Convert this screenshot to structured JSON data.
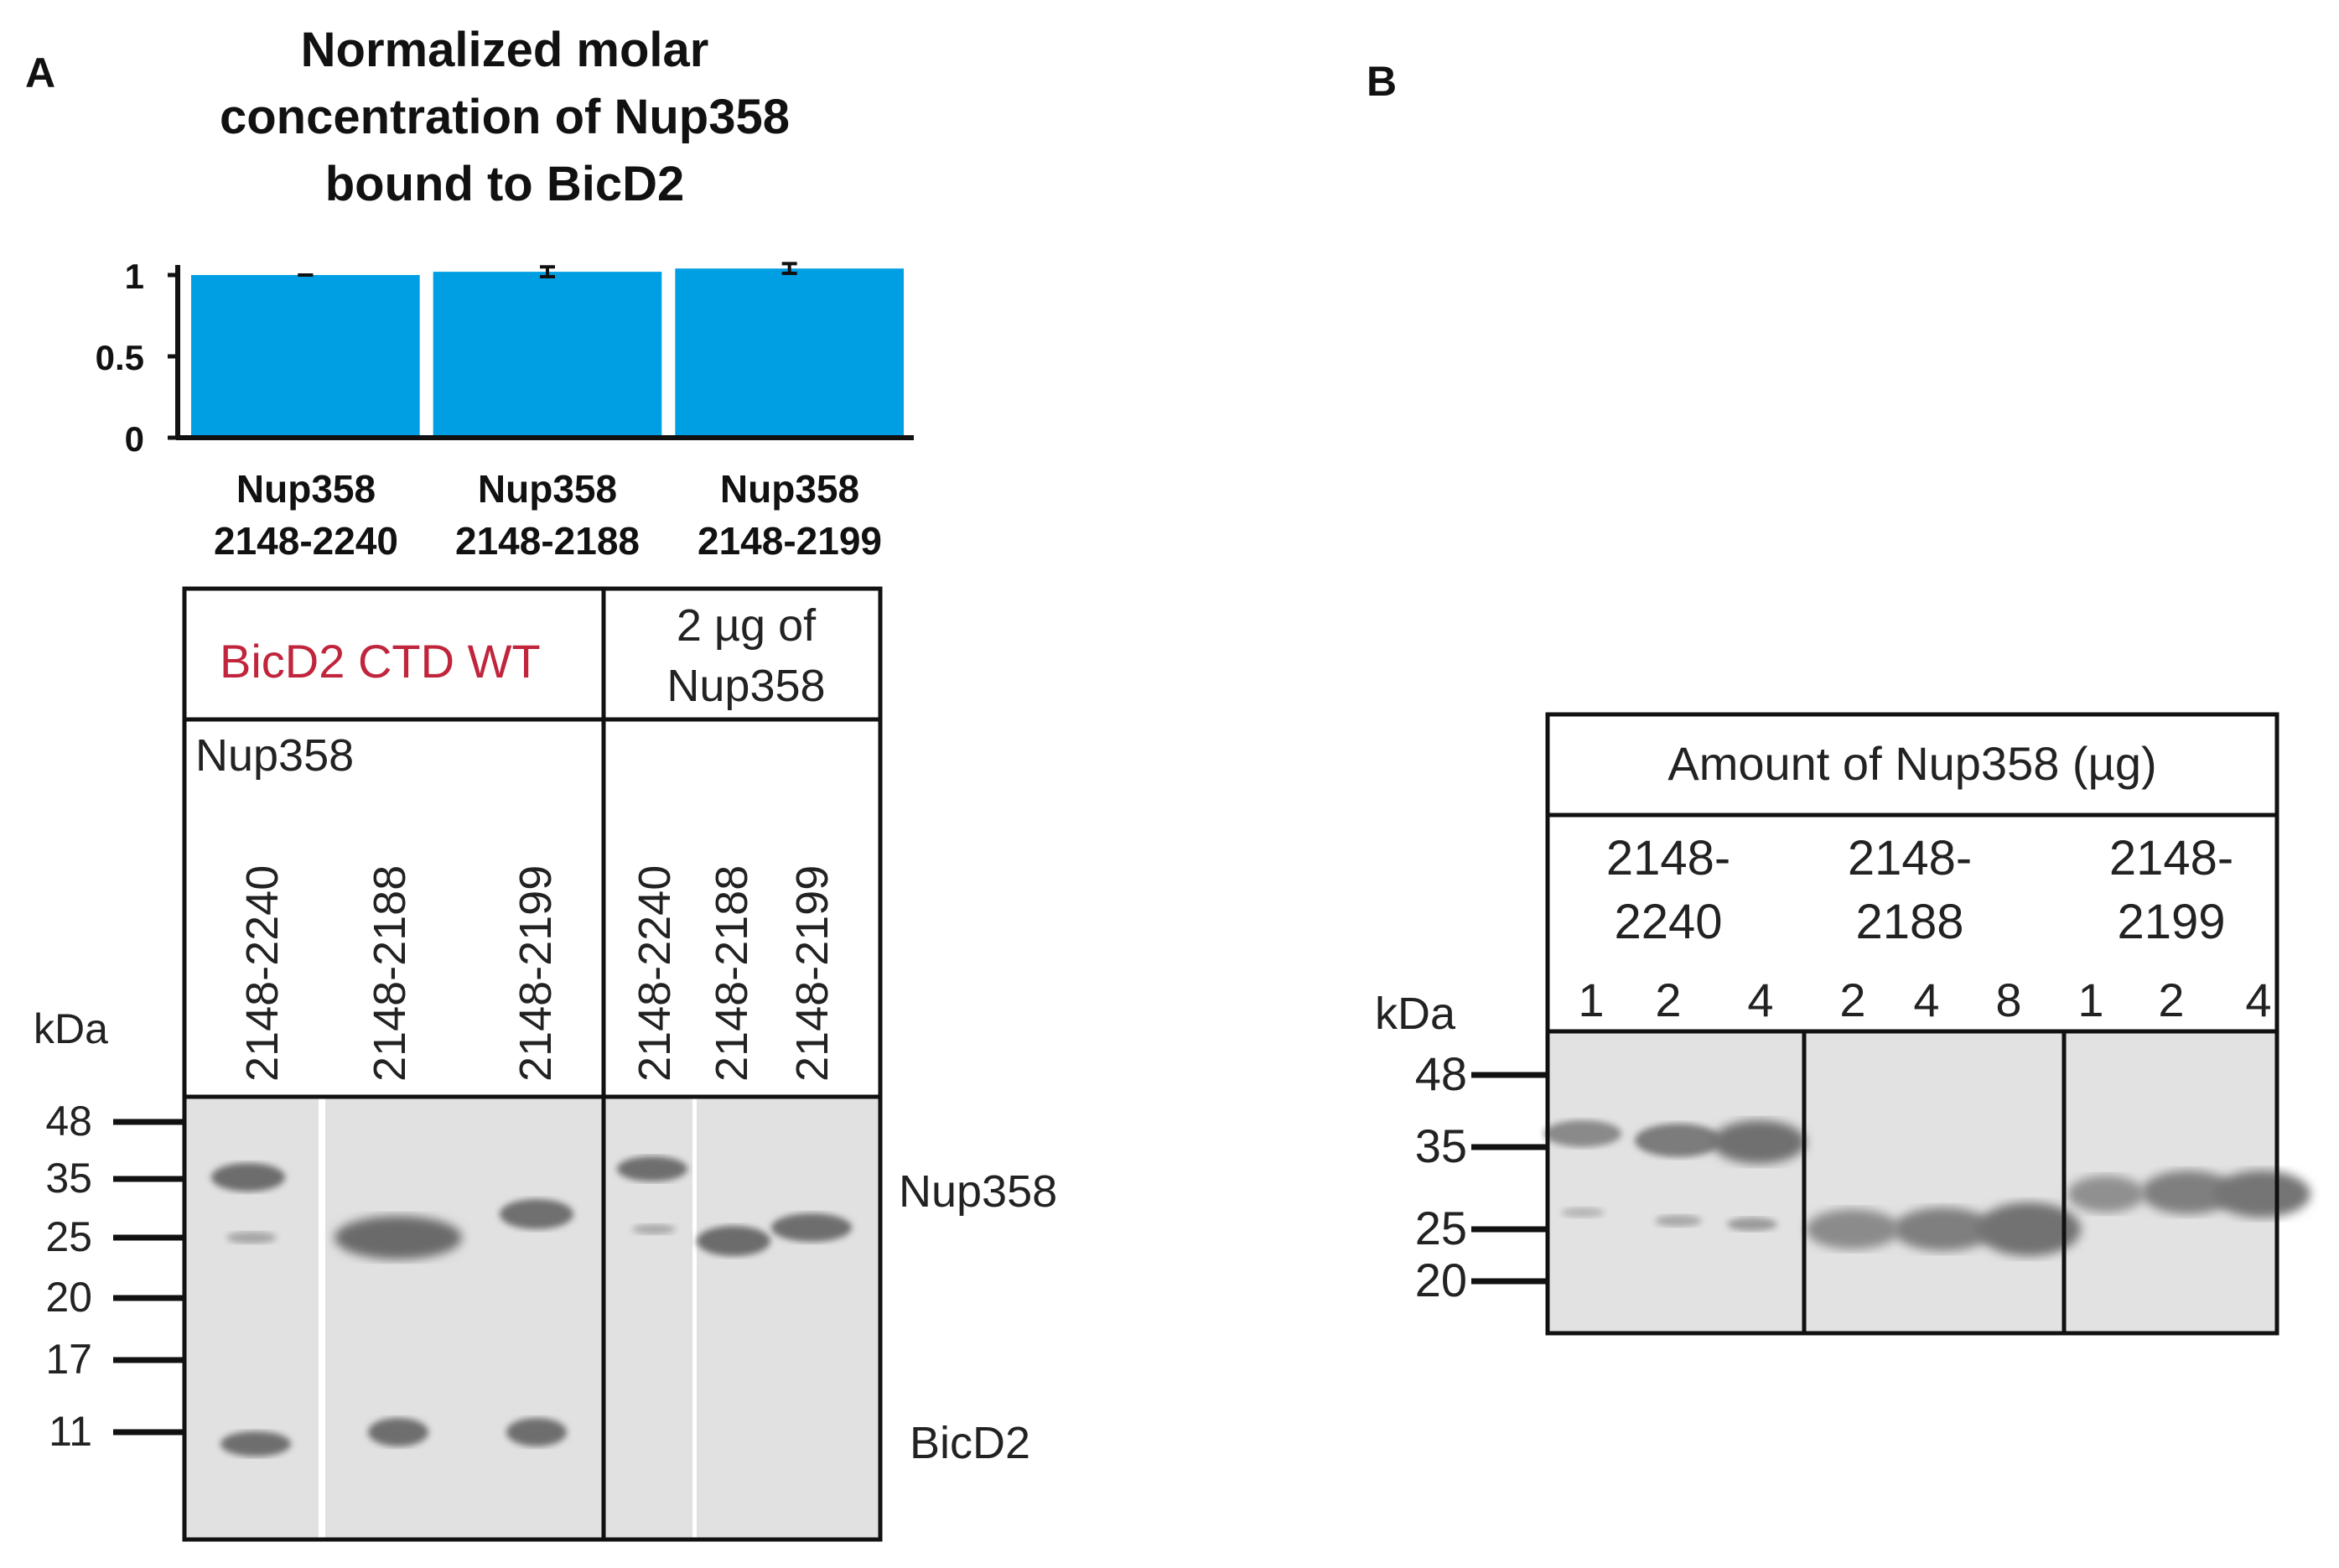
{
  "panel_a": {
    "letter": "A",
    "chart_data": {
      "type": "bar",
      "title": "Normalized molar concentration of Nup358 bound to BicD2",
      "title_lines": [
        "Normalized molar",
        "concentration of Nup358",
        "bound to BicD2"
      ],
      "categories": [
        "Nup358 2148-2240",
        "Nup358 2148-2188",
        "Nup358 2148-2199"
      ],
      "category_lines": [
        [
          "Nup358",
          "2148-2240"
        ],
        [
          "Nup358",
          "2148-2188"
        ],
        [
          "Nup358",
          "2148-2199"
        ]
      ],
      "values": [
        1.0,
        1.02,
        1.04
      ],
      "errors": [
        0.0,
        0.03,
        0.03
      ],
      "ylim": [
        0,
        1
      ],
      "yticks": [
        "1",
        "0.5",
        "0"
      ],
      "ytick_values": [
        1,
        0.5,
        0
      ],
      "xlabel": "",
      "ylabel": "",
      "grid": false,
      "bar_color": "#009fe3"
    },
    "gel": {
      "header_left": "BicD2 CTD WT",
      "header_left_color": "#c0253c",
      "header_right_lines": [
        "2 µg of",
        "Nup358"
      ],
      "subheader_left": "Nup358",
      "lanes_left": [
        "2148-2240",
        "2148-2188",
        "2148-2199"
      ],
      "lanes_right": [
        "2148-2240",
        "2148-2188",
        "2148-2199"
      ],
      "kda_label": "kDa",
      "markers": [
        "48",
        "35",
        "25",
        "20",
        "17",
        "11"
      ],
      "band_label_top": "Nup358",
      "band_label_bottom": "BicD2"
    }
  },
  "panel_b": {
    "letter": "B",
    "gel": {
      "header": "Amount of Nup358 (µg)",
      "groups": [
        {
          "name_lines": [
            "2148-",
            "2240"
          ],
          "lanes": [
            "1",
            "2",
            "4"
          ]
        },
        {
          "name_lines": [
            "2148-",
            "2188"
          ],
          "lanes": [
            "2",
            "4",
            "8"
          ]
        },
        {
          "name_lines": [
            "2148-",
            "2199"
          ],
          "lanes": [
            "1",
            "2",
            "4"
          ]
        }
      ],
      "kda_label": "kDa",
      "markers": [
        "48",
        "35",
        "25",
        "20"
      ]
    }
  }
}
